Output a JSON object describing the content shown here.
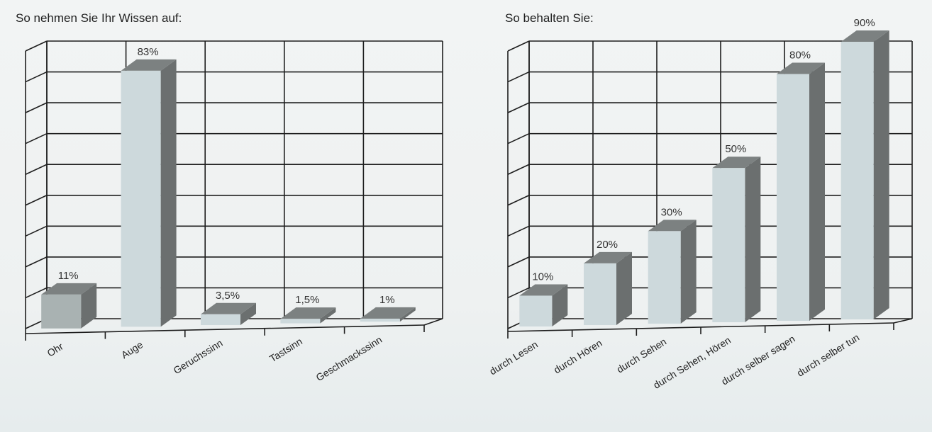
{
  "chart_data": [
    {
      "type": "bar",
      "title": "So nehmen Sie Ihr Wissen auf:",
      "categories": [
        "Ohr",
        "Auge",
        "Geruchssinn",
        "Tastsinn",
        "Geschmackssinn"
      ],
      "values": [
        11,
        83,
        3.5,
        1.5,
        1
      ],
      "value_labels": [
        "11%",
        "83%",
        "3,5%",
        "1,5%",
        "1%"
      ],
      "ylim": [
        0,
        90
      ],
      "grid": true,
      "legend": "none",
      "bar_colors": [
        "#a9b2b2",
        "#cdd9dc",
        "#cdd9dc",
        "#cdd9dc",
        "#cdd9dc"
      ],
      "bar_side_color": "#6b6f6f"
    },
    {
      "type": "bar",
      "title": "So behalten Sie:",
      "categories": [
        "durch Lesen",
        "durch Hören",
        "durch Sehen",
        "durch Sehen, Hören",
        "durch selber sagen",
        "durch selber tun"
      ],
      "values": [
        10,
        20,
        30,
        50,
        80,
        90
      ],
      "value_labels": [
        "10%",
        "20%",
        "30%",
        "50%",
        "80%",
        "90%"
      ],
      "ylim": [
        0,
        90
      ],
      "grid": true,
      "legend": "none",
      "bar_colors": [
        "#cdd9dc",
        "#cdd9dc",
        "#cdd9dc",
        "#cdd9dc",
        "#cdd9dc",
        "#cdd9dc"
      ],
      "bar_side_color": "#6b6f6f"
    }
  ]
}
